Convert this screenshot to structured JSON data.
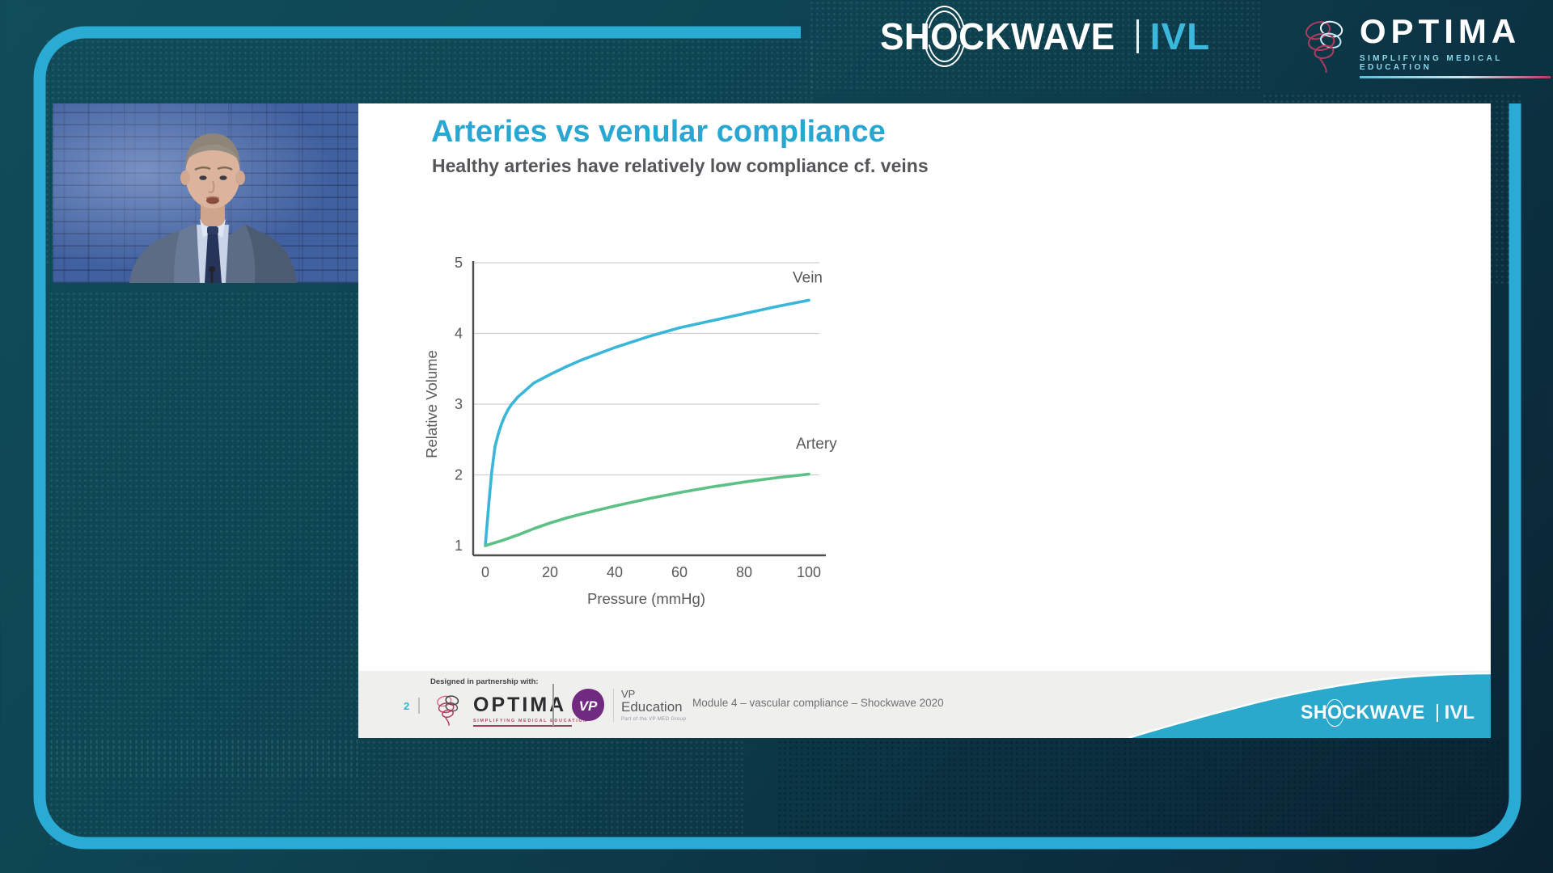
{
  "header": {
    "shockwave_logo": {
      "part1": "SH",
      "o": "O",
      "part2": "CKWAVE",
      "divider": "|",
      "suffix": "IVL"
    },
    "optima_logo": {
      "title": "OPTIMA",
      "tagline": "SIMPLIFYING MEDICAL EDUCATION"
    }
  },
  "slide": {
    "title": "Arteries vs venular compliance",
    "subtitle": "Healthy arteries have relatively low compliance cf. veins",
    "footer": {
      "partnership_label": "Designed in partnership with:",
      "page_number": "2",
      "optima_logo": {
        "title": "OPTIMA",
        "tagline": "SIMPLIFYING MEDICAL EDUCATION"
      },
      "vp_logo": {
        "monogram": "VP",
        "line1": "VP",
        "line2": "Education",
        "tagline": "Part of the VP MED Group"
      },
      "module_text": "Module 4 – vascular compliance – Shockwave 2020",
      "wave_logo": {
        "part1": "SH",
        "o": "O",
        "part2": "CKWAVE",
        "divider": "|",
        "suffix": "IVL"
      }
    }
  },
  "chart_data": {
    "type": "line",
    "title": "",
    "xlabel": "Pressure (mmHg)",
    "ylabel": "Relative Volume",
    "xlim": [
      0,
      105
    ],
    "ylim": [
      1,
      5
    ],
    "xticks": [
      0,
      20,
      40,
      60,
      80,
      100
    ],
    "yticks": [
      1,
      2,
      3,
      4,
      5
    ],
    "grid": "horizontal-above-1",
    "legend_position": "inline-right-labels",
    "series": [
      {
        "name": "Vein",
        "color": "#39b6d8",
        "label_pos": {
          "x": 95,
          "y": 4.72
        },
        "x": [
          0,
          1,
          2,
          3,
          4,
          5,
          6,
          7,
          8,
          10,
          12,
          15,
          20,
          25,
          30,
          40,
          50,
          60,
          70,
          80,
          90,
          100
        ],
        "y": [
          1.0,
          1.55,
          2.05,
          2.4,
          2.58,
          2.72,
          2.83,
          2.92,
          2.99,
          3.1,
          3.18,
          3.3,
          3.42,
          3.53,
          3.63,
          3.8,
          3.95,
          4.08,
          4.18,
          4.28,
          4.38,
          4.47
        ]
      },
      {
        "name": "Artery",
        "color": "#5cc184",
        "label_pos": {
          "x": 96,
          "y": 2.37
        },
        "x": [
          0,
          5,
          10,
          15,
          20,
          25,
          30,
          40,
          50,
          60,
          70,
          80,
          90,
          100
        ],
        "y": [
          1.0,
          1.07,
          1.15,
          1.24,
          1.32,
          1.39,
          1.45,
          1.56,
          1.66,
          1.75,
          1.83,
          1.9,
          1.96,
          2.01
        ]
      }
    ]
  },
  "colors": {
    "accent_cyan": "#29a7d3",
    "frame_border": "#29abd4",
    "ivl_cyan": "#3cb8dc",
    "footer_band": "#efefee",
    "wave_cyan": "#2aa9cd",
    "background_teal": "#0e4451",
    "background_navy": "#0a2233",
    "optima_crimson": "#b23a5e",
    "vp_purple": "#702a80",
    "axis_gray": "#58595b"
  }
}
